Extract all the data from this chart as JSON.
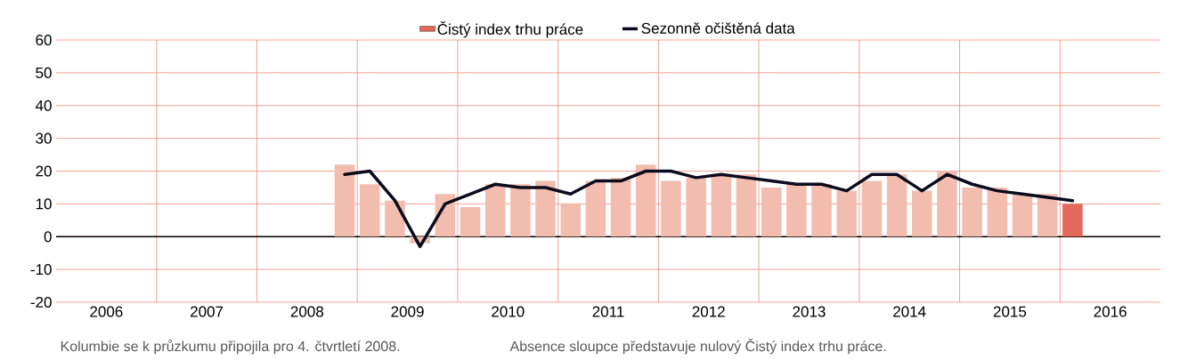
{
  "chart_data": {
    "type": "bar",
    "legend": "top",
    "grid": true,
    "xlim": [
      2006,
      2017
    ],
    "xticks": [
      {
        "value": 2006.5,
        "label": "2006"
      },
      {
        "value": 2007.5,
        "label": "2007"
      },
      {
        "value": 2008.5,
        "label": "2008"
      },
      {
        "value": 2009.5,
        "label": "2009"
      },
      {
        "value": 2010.5,
        "label": "2010"
      },
      {
        "value": 2011.5,
        "label": "2011"
      },
      {
        "value": 2012.5,
        "label": "2012"
      },
      {
        "value": 2013.5,
        "label": "2013"
      },
      {
        "value": 2014.5,
        "label": "2014"
      },
      {
        "value": 2015.5,
        "label": "2015"
      },
      {
        "value": 2016.5,
        "label": "2016"
      },
      {
        "value": 2007,
        "label": null
      },
      {
        "value": 2008,
        "label": null
      },
      {
        "value": 2009,
        "label": null
      },
      {
        "value": 2010,
        "label": null
      },
      {
        "value": 2011,
        "label": null
      },
      {
        "value": 2012,
        "label": null
      },
      {
        "value": 2013,
        "label": null
      },
      {
        "value": 2014,
        "label": null
      },
      {
        "value": 2015,
        "label": null
      },
      {
        "value": 2016,
        "label": null
      }
    ],
    "ylim": [
      -20,
      60
    ],
    "yticks": [
      -20,
      -10,
      0,
      10,
      20,
      30,
      40,
      50,
      60
    ],
    "x": [
      2008.875,
      2009.125,
      2009.375,
      2009.625,
      2009.875,
      2010.125,
      2010.375,
      2010.625,
      2010.875,
      2011.125,
      2011.375,
      2011.625,
      2011.875,
      2012.125,
      2012.375,
      2012.625,
      2012.875,
      2013.125,
      2013.375,
      2013.625,
      2013.875,
      2014.125,
      2014.375,
      2014.625,
      2014.875,
      2015.125,
      2015.375,
      2015.625,
      2015.875,
      2016.125
    ],
    "series": [
      {
        "name": "Čistý index trhu práce",
        "color": "#e5695a",
        "values": [
          22,
          16,
          11,
          -2,
          13,
          9,
          16,
          16,
          17,
          10,
          17,
          18,
          22,
          17,
          18,
          19,
          19,
          15,
          16,
          16,
          14,
          17,
          19,
          14,
          20,
          15,
          15,
          13,
          13,
          10
        ],
        "colors": [
          "#f2bdaf",
          "#f2bdaf",
          "#f2bdaf",
          "#f2bdaf",
          "#f2bdaf",
          "#f2bdaf",
          "#f2bdaf",
          "#f2bdaf",
          "#f2bdaf",
          "#f2bdaf",
          "#f2bdaf",
          "#f2bdaf",
          "#f2bdaf",
          "#f2bdaf",
          "#f2bdaf",
          "#f2bdaf",
          "#f2bdaf",
          "#f2bdaf",
          "#f2bdaf",
          "#f2bdaf",
          "#f2bdaf",
          "#f2bdaf",
          "#f2bdaf",
          "#f2bdaf",
          "#f2bdaf",
          "#f2bdaf",
          "#f2bdaf",
          "#f2bdaf",
          "#f2bdaf",
          "#e5695a"
        ]
      },
      {
        "name": "Sezonně očištěná data",
        "type": "line",
        "color": "#0b0b1e",
        "values": [
          19,
          20,
          11,
          -3,
          10,
          13,
          16,
          15,
          15,
          13,
          17,
          17,
          20,
          20,
          18,
          19,
          18,
          17,
          16,
          16,
          14,
          19,
          19,
          14,
          19,
          16,
          14,
          13,
          12,
          11
        ]
      }
    ],
    "annotations": [
      "Kolumbie se k průzkumu připojila pro 4. čtvrtletí 2008.",
      "Absence sloupce představuje nulový Čistý index trhu práce."
    ]
  }
}
